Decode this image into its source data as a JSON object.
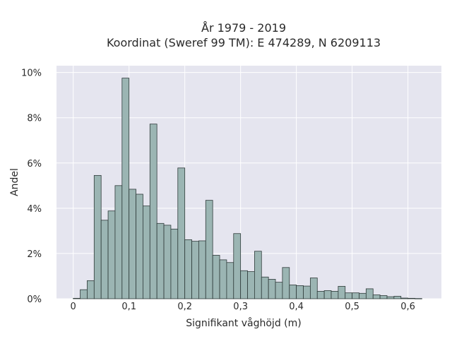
{
  "chart_data": {
    "type": "bar",
    "title": "År 1979 - 2019",
    "subtitle": "Koordinat (Sweref 99 TM): E 474289, N 6209113",
    "xlabel": "Signifikant våghöjd (m)",
    "ylabel": "Andel",
    "xlim": [
      -0.03,
      0.66
    ],
    "ylim": [
      0,
      10.3
    ],
    "x_ticks": [
      0,
      0.1,
      0.2,
      0.3,
      0.4,
      0.5,
      0.6
    ],
    "x_tick_labels": [
      "0",
      "0,1",
      "0,2",
      "0,3",
      "0,4",
      "0,5",
      "0,6"
    ],
    "y_ticks": [
      0,
      2,
      4,
      6,
      8,
      10
    ],
    "y_tick_labels": [
      "0%",
      "2%",
      "4%",
      "6%",
      "8%",
      "10%"
    ],
    "bin_width": 0.0125,
    "bin_starts": [
      0.0,
      0.0125,
      0.025,
      0.0375,
      0.05,
      0.0625,
      0.075,
      0.0875,
      0.1,
      0.1125,
      0.125,
      0.1375,
      0.15,
      0.1625,
      0.175,
      0.1875,
      0.2,
      0.2125,
      0.225,
      0.2375,
      0.25,
      0.2625,
      0.275,
      0.2875,
      0.3,
      0.3125,
      0.325,
      0.3375,
      0.35,
      0.3625,
      0.375,
      0.3875,
      0.4,
      0.4125,
      0.425,
      0.4375,
      0.45,
      0.4625,
      0.475,
      0.4875,
      0.5,
      0.5125,
      0.525,
      0.5375,
      0.55,
      0.5625,
      0.575,
      0.5875,
      0.6,
      0.6125
    ],
    "values": [
      0.02,
      0.4,
      0.8,
      5.45,
      3.47,
      3.88,
      5.0,
      9.75,
      4.84,
      4.62,
      4.1,
      7.72,
      3.33,
      3.25,
      3.08,
      5.78,
      2.61,
      2.54,
      2.56,
      4.35,
      1.92,
      1.72,
      1.6,
      2.88,
      1.24,
      1.2,
      2.1,
      0.96,
      0.86,
      0.73,
      1.38,
      0.61,
      0.58,
      0.56,
      0.92,
      0.33,
      0.36,
      0.33,
      0.55,
      0.26,
      0.26,
      0.24,
      0.44,
      0.17,
      0.14,
      0.09,
      0.11,
      0.03,
      0.02,
      0.01
    ],
    "grid": true,
    "colors": {
      "bar_fill": "#9bb5b3",
      "bar_stroke": "#2f3b3a",
      "plot_background": "#e5e5ef",
      "grid": "#ffffff",
      "text": "#2a2a2a"
    }
  }
}
